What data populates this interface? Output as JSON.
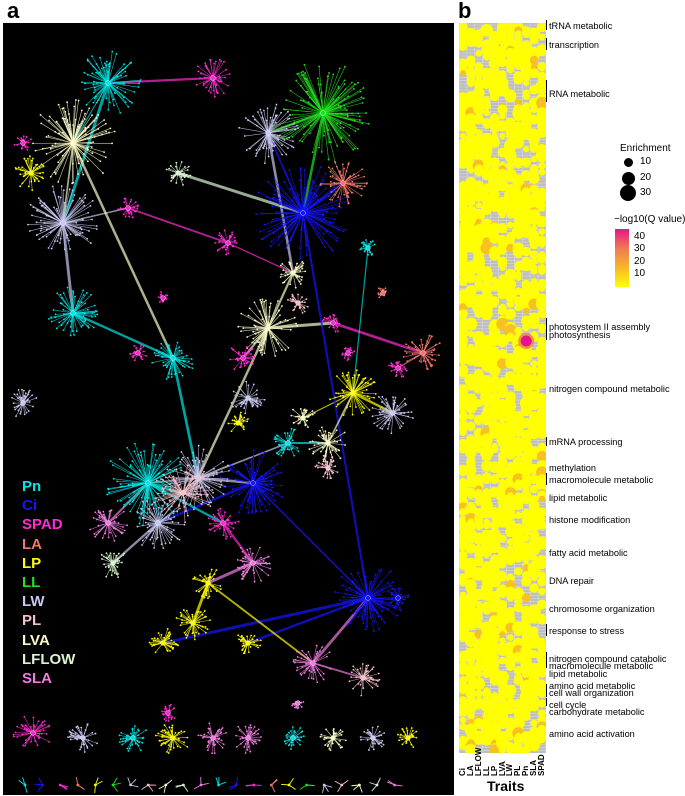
{
  "panel_a": {
    "label": "a",
    "legend": [
      {
        "name": "Pn",
        "color": "#00e5e5"
      },
      {
        "name": "Ci",
        "color": "#1515ff"
      },
      {
        "name": "SPAD",
        "color": "#ff2bd2"
      },
      {
        "name": "LA",
        "color": "#f4756b"
      },
      {
        "name": "LP",
        "color": "#ffff00"
      },
      {
        "name": "LL",
        "color": "#22e022"
      },
      {
        "name": "LW",
        "color": "#c8c8f0"
      },
      {
        "name": "PL",
        "color": "#f5c0c8"
      },
      {
        "name": "LVA",
        "color": "#fbfbc8"
      },
      {
        "name": "LFLOW",
        "color": "#d8f5d0"
      },
      {
        "name": "SLA",
        "color": "#f07ce0"
      }
    ]
  },
  "panel_b": {
    "label": "b",
    "x_title": "Traits",
    "traits": [
      "Ci",
      "LA",
      "LFLOW",
      "LL",
      "LP",
      "LVA",
      "LW",
      "PL",
      "Pn",
      "SLA",
      "SPAD"
    ],
    "categories": [
      "tRNA metabolic",
      "transcription",
      "RNA metabolic",
      "photosystem II assembly",
      "photosynthesis",
      "nitrogen compound metabolic",
      "mRNA processing",
      "methylation",
      "macromolecule metabolic",
      "lipid metabolic",
      "histone modification",
      "fatty acid metabolic",
      "DNA repair",
      "chromosome organization",
      "response to stress",
      "nitrogen compound catabolic",
      "macromolecule metabolic",
      "lipid metabolic",
      "amino acid metabolic",
      "cell wall organization",
      "cell cycle",
      "carbohydrate metabolic",
      "amino acid activation"
    ],
    "size_legend": {
      "title": "Enrichment",
      "values": [
        "10",
        "20",
        "30"
      ]
    },
    "color_legend": {
      "title": "−log10(Q value)",
      "values": [
        "40",
        "30",
        "20",
        "10"
      ],
      "colors": [
        "#e6148c",
        "#f07a50",
        "#f8b72a",
        "#ffff00"
      ]
    }
  }
}
